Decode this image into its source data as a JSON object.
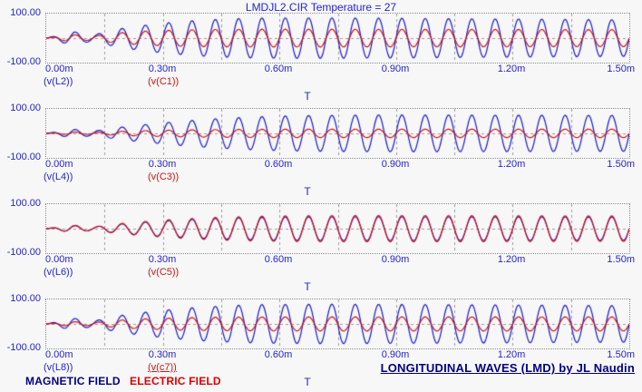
{
  "title": {
    "text": "LMDJL2.CIR Temperature = 27"
  },
  "footer": {
    "magnetic_label": "MAGNETIC FIELD",
    "electric_label": "ELECTRIC FIELD",
    "credit": "LONGITUDINAL WAVES (LMD) by JL Naudin"
  },
  "colors": {
    "background": "#f7f7f7",
    "axis_text": "#2424cc",
    "blue_trace": "#1818cf",
    "red_trace": "#cc1515",
    "grid": "#9a9a9a",
    "navy_text": "#000082",
    "electric_red": "#e00000"
  },
  "chart_data": [
    {
      "type": "line",
      "x": {
        "label": "T",
        "unit": "ms",
        "range": [
          0,
          1.5
        ],
        "grid_step": 0.15,
        "ticks": [
          "0.00m",
          "0.30m",
          "0.60m",
          "0.90m",
          "1.20m",
          "1.50m"
        ]
      },
      "y": {
        "range": [
          -100,
          100
        ],
        "ticks": [
          "100.00",
          "-100.00"
        ]
      },
      "series": [
        {
          "name": "(v(L2))",
          "color": "#1818cf",
          "kind": "rising sine burst",
          "period": 0.06,
          "peak_amplitude": 88,
          "rise": 0.26,
          "dip_center": 0.105,
          "dip_depth": 0.5,
          "start_bump": 0.22,
          "end_decay": 0.12
        },
        {
          "name": "(v(C1))",
          "color": "#cc1515",
          "kind": "rising sine burst",
          "period": 0.06,
          "peak_amplitude": 38,
          "rise": 0.2,
          "dip_center": 0.105,
          "dip_depth": 0.5,
          "start_bump": 0.25,
          "end_decay": 0.05
        }
      ]
    },
    {
      "type": "line",
      "x": {
        "label": "T",
        "unit": "ms",
        "range": [
          0,
          1.5
        ],
        "grid_step": 0.15,
        "ticks": [
          "0.00m",
          "0.30m",
          "0.60m",
          "0.90m",
          "1.20m",
          "1.50m"
        ]
      },
      "y": {
        "range": [
          -100,
          100
        ],
        "ticks": [
          "100.00",
          "-100.00"
        ]
      },
      "series": [
        {
          "name": "(v(L4))",
          "color": "#1818cf",
          "kind": "rising sine burst",
          "period": 0.06,
          "peak_amplitude": 80,
          "rise": 0.34,
          "dip_center": 0.105,
          "dip_depth": 0.4,
          "start_bump": 0.15,
          "end_decay": 0.05
        },
        {
          "name": "(v(C3))",
          "color": "#cc1515",
          "kind": "rising sine burst",
          "period": 0.06,
          "peak_amplitude": 18,
          "rise": 0.25,
          "dip_center": 0.105,
          "dip_depth": 0.4,
          "start_bump": 0.2,
          "end_decay": 0
        }
      ]
    },
    {
      "type": "line",
      "x": {
        "label": "T",
        "unit": "ms",
        "range": [
          0,
          1.5
        ],
        "grid_step": 0.15,
        "ticks": [
          "0.00m",
          "0.30m",
          "0.60m",
          "0.90m",
          "1.20m",
          "1.50m"
        ]
      },
      "y": {
        "range": [
          -100,
          100
        ],
        "ticks": [
          "100.00",
          "-100.00"
        ]
      },
      "series": [
        {
          "name": "(v(L6))",
          "color": "#1818cf",
          "kind": "rising sine burst",
          "period": 0.06,
          "peak_amplitude": 52,
          "rise": 0.3,
          "dip_center": 0.105,
          "dip_depth": 0.45,
          "start_bump": 0.18,
          "end_decay": 0.05
        },
        {
          "name": "(v(C5))",
          "color": "#cc1515",
          "kind": "rising sine burst",
          "period": 0.06,
          "peak_amplitude": 57,
          "rise": 0.3,
          "dip_center": 0.105,
          "dip_depth": 0.45,
          "start_bump": 0.18,
          "end_decay": 0.05
        }
      ]
    },
    {
      "type": "line",
      "x": {
        "label": "T",
        "unit": "ms",
        "range": [
          0,
          1.5
        ],
        "grid_step": 0.15,
        "ticks": [
          "0.00m",
          "0.30m",
          "0.60m",
          "0.90m",
          "1.20m",
          "1.50m"
        ]
      },
      "y": {
        "range": [
          -100,
          100
        ],
        "ticks": [
          "100.00",
          "-100.00"
        ]
      },
      "series": [
        {
          "name": "(v(L8))",
          "color": "#1818cf",
          "kind": "rising sine burst",
          "period": 0.06,
          "peak_amplitude": 86,
          "rise": 0.28,
          "dip_center": 0.105,
          "dip_depth": 0.5,
          "start_bump": 0.2,
          "end_decay": 0.1
        },
        {
          "name": "(v(c7))",
          "color": "#cc1515",
          "kind": "rising sine burst",
          "underline": true,
          "period": 0.06,
          "peak_amplitude": 30,
          "rise": 0.22,
          "dip_center": 0.105,
          "dip_depth": 0.5,
          "start_bump": 0.22,
          "end_decay": 0
        }
      ]
    }
  ]
}
